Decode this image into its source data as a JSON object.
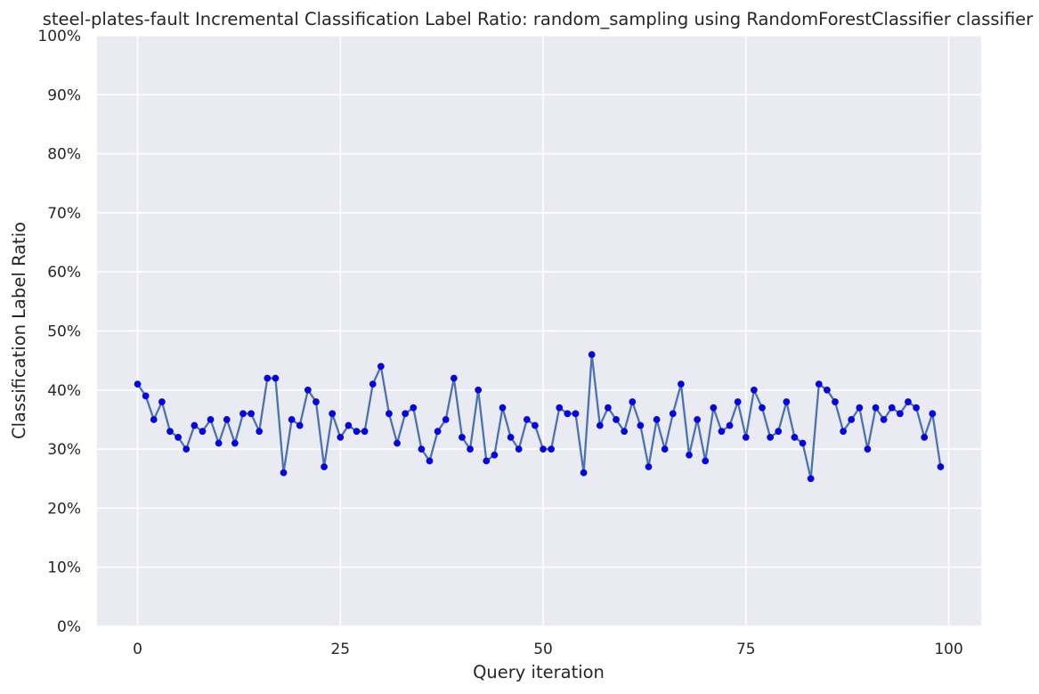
{
  "chart_data": {
    "type": "line",
    "title": "steel-plates-fault Incremental Classification Label Ratio: random_sampling using RandomForestClassifier classifier",
    "xlabel": "Query iteration",
    "ylabel": "Classification Label Ratio",
    "xlim": [
      -5,
      104
    ],
    "ylim": [
      0,
      100
    ],
    "x_ticks": [
      0,
      25,
      50,
      75,
      100
    ],
    "y_ticks": [
      0,
      10,
      20,
      30,
      40,
      50,
      60,
      70,
      80,
      90,
      100
    ],
    "y_tick_labels": [
      "0%",
      "10%",
      "20%",
      "30%",
      "40%",
      "50%",
      "60%",
      "70%",
      "80%",
      "90%",
      "100%"
    ],
    "grid": true,
    "background": "#EAEAF2",
    "line_color": "#4C72B0",
    "marker_color": "#0000FF",
    "series": [
      {
        "x": [
          0,
          1,
          2,
          3,
          4,
          5,
          6,
          7,
          8,
          9,
          10,
          11,
          12,
          13,
          14,
          15,
          16,
          17,
          18,
          19,
          20,
          21,
          22,
          23,
          24,
          25,
          26,
          27,
          28,
          29,
          30,
          31,
          32,
          33,
          34,
          35,
          36,
          37,
          38,
          39,
          40,
          41,
          42,
          43,
          44,
          45,
          46,
          47,
          48,
          49,
          50,
          51,
          52,
          53,
          54,
          55,
          56,
          57,
          58,
          59,
          60,
          61,
          62,
          63,
          64,
          65,
          66,
          67,
          68,
          69,
          70,
          71,
          72,
          73,
          74,
          75,
          76,
          77,
          78,
          79,
          80,
          81,
          82,
          83,
          84,
          85,
          86,
          87,
          88,
          89,
          90,
          91,
          92,
          93,
          94,
          95,
          96,
          97,
          98,
          99
        ],
        "values": [
          41,
          39,
          35,
          38,
          33,
          32,
          30,
          34,
          33,
          35,
          31,
          35,
          31,
          36,
          36,
          33,
          42,
          42,
          26,
          35,
          34,
          40,
          38,
          27,
          36,
          32,
          34,
          33,
          33,
          41,
          44,
          36,
          31,
          36,
          37,
          30,
          28,
          33,
          35,
          42,
          32,
          30,
          40,
          28,
          29,
          37,
          32,
          30,
          35,
          34,
          30,
          30,
          37,
          36,
          36,
          26,
          46,
          34,
          37,
          35,
          33,
          38,
          34,
          27,
          35,
          30,
          36,
          41,
          29,
          35,
          28,
          37,
          33,
          34,
          38,
          32,
          40,
          37,
          32,
          33,
          38,
          32,
          31,
          25,
          41,
          40,
          38,
          33,
          35,
          37,
          30,
          37,
          35,
          37,
          36,
          38,
          37,
          32,
          36,
          27
        ]
      }
    ]
  }
}
